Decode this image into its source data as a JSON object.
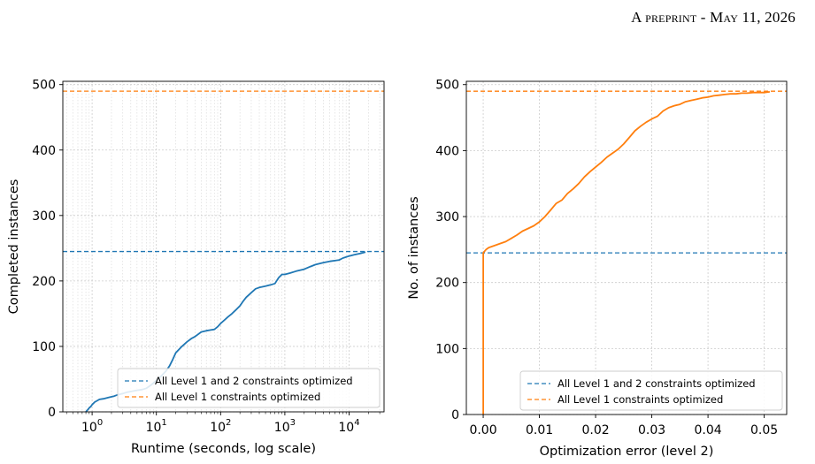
{
  "header": {
    "text": "A preprint - May 11, 2026"
  },
  "colors": {
    "blue": "#1f77b4",
    "orange": "#ff7f0e"
  },
  "chart_data": [
    {
      "type": "line",
      "xscale": "log",
      "xlabel": "Runtime (seconds, log scale)",
      "ylabel": "Completed instances",
      "xlim": [
        0.35,
        35000
      ],
      "ylim": [
        0,
        505
      ],
      "xticks": [
        {
          "v": 1,
          "label": "10^0"
        },
        {
          "v": 10,
          "label": "10^1"
        },
        {
          "v": 100,
          "label": "10^2"
        },
        {
          "v": 1000,
          "label": "10^3"
        },
        {
          "v": 10000,
          "label": "10^4"
        }
      ],
      "yticks": [
        0,
        100,
        200,
        300,
        400,
        500
      ],
      "grid": true,
      "legend_position": "lower-right",
      "hlines": [
        {
          "y": 245,
          "color": "#1f77b4",
          "style": "dashed",
          "label": "All Level 1 and 2 constraints optimized"
        },
        {
          "y": 490,
          "color": "#ff7f0e",
          "style": "dashed",
          "label": "All Level 1 constraints optimized"
        }
      ],
      "series": [
        {
          "color": "#1f77b4",
          "points": [
            [
              0.8,
              0
            ],
            [
              0.85,
              3
            ],
            [
              0.9,
              6
            ],
            [
              0.95,
              8
            ],
            [
              1.0,
              11
            ],
            [
              1.1,
              15
            ],
            [
              1.2,
              17
            ],
            [
              1.3,
              19
            ],
            [
              1.5,
              20
            ],
            [
              1.8,
              22
            ],
            [
              2.2,
              24
            ],
            [
              2.5,
              26
            ],
            [
              3.0,
              28
            ],
            [
              3.5,
              30
            ],
            [
              4.0,
              31
            ],
            [
              5.0,
              33
            ],
            [
              6.0,
              34
            ],
            [
              7.0,
              36
            ],
            [
              8.0,
              40
            ],
            [
              9.0,
              44
            ],
            [
              10.0,
              48
            ],
            [
              12.0,
              55
            ],
            [
              14.0,
              62
            ],
            [
              16.0,
              70
            ],
            [
              18.0,
              80
            ],
            [
              20.0,
              90
            ],
            [
              25.0,
              100
            ],
            [
              30.0,
              107
            ],
            [
              35.0,
              112
            ],
            [
              40.0,
              115
            ],
            [
              50.0,
              122
            ],
            [
              60.0,
              124
            ],
            [
              70.0,
              125
            ],
            [
              80.0,
              126
            ],
            [
              90.0,
              130
            ],
            [
              100.0,
              135
            ],
            [
              130.0,
              145
            ],
            [
              150.0,
              150
            ],
            [
              170.0,
              155
            ],
            [
              200.0,
              162
            ],
            [
              220.0,
              168
            ],
            [
              250.0,
              175
            ],
            [
              300.0,
              182
            ],
            [
              350.0,
              188
            ],
            [
              400.0,
              190
            ],
            [
              500.0,
              192
            ],
            [
              600.0,
              194
            ],
            [
              700.0,
              196
            ],
            [
              800.0,
              205
            ],
            [
              900.0,
              210
            ],
            [
              1000.0,
              210
            ],
            [
              1200.0,
              212
            ],
            [
              1500.0,
              215
            ],
            [
              2000.0,
              218
            ],
            [
              2500.0,
              222
            ],
            [
              3000.0,
              225
            ],
            [
              4000.0,
              228
            ],
            [
              5000.0,
              230
            ],
            [
              7000.0,
              232
            ],
            [
              8000.0,
              235
            ],
            [
              10000.0,
              238
            ],
            [
              12000.0,
              240
            ],
            [
              15000.0,
              242
            ],
            [
              18000.0,
              244
            ]
          ]
        }
      ]
    },
    {
      "type": "line",
      "xlabel": "Optimization error (level 2)",
      "ylabel": "No. of instances",
      "xlim": [
        -0.003,
        0.054
      ],
      "ylim": [
        0,
        505
      ],
      "xticks": [
        {
          "v": 0,
          "label": "0.00"
        },
        {
          "v": 0.01,
          "label": "0.01"
        },
        {
          "v": 0.02,
          "label": "0.02"
        },
        {
          "v": 0.03,
          "label": "0.03"
        },
        {
          "v": 0.04,
          "label": "0.04"
        },
        {
          "v": 0.05,
          "label": "0.05"
        }
      ],
      "yticks": [
        0,
        100,
        200,
        300,
        400,
        500
      ],
      "grid": true,
      "legend_position": "lower-right",
      "hlines": [
        {
          "y": 245,
          "color": "#1f77b4",
          "style": "dashed",
          "label": "All Level 1 and 2 constraints optimized"
        },
        {
          "y": 490,
          "color": "#ff7f0e",
          "style": "dashed",
          "label": "All Level 1 constraints optimized"
        }
      ],
      "series": [
        {
          "color": "#ff7f0e",
          "points": [
            [
              0,
              0
            ],
            [
              0,
              245
            ],
            [
              0.0005,
              250
            ],
            [
              0.001,
              253
            ],
            [
              0.002,
              256
            ],
            [
              0.003,
              259
            ],
            [
              0.004,
              262
            ],
            [
              0.005,
              267
            ],
            [
              0.006,
              272
            ],
            [
              0.007,
              278
            ],
            [
              0.008,
              282
            ],
            [
              0.009,
              286
            ],
            [
              0.01,
              292
            ],
            [
              0.011,
              300
            ],
            [
              0.012,
              310
            ],
            [
              0.013,
              320
            ],
            [
              0.014,
              325
            ],
            [
              0.015,
              335
            ],
            [
              0.016,
              342
            ],
            [
              0.017,
              350
            ],
            [
              0.018,
              360
            ],
            [
              0.019,
              368
            ],
            [
              0.02,
              375
            ],
            [
              0.021,
              382
            ],
            [
              0.022,
              390
            ],
            [
              0.023,
              396
            ],
            [
              0.024,
              402
            ],
            [
              0.025,
              410
            ],
            [
              0.026,
              420
            ],
            [
              0.027,
              430
            ],
            [
              0.028,
              437
            ],
            [
              0.029,
              443
            ],
            [
              0.03,
              448
            ],
            [
              0.031,
              452
            ],
            [
              0.032,
              460
            ],
            [
              0.033,
              465
            ],
            [
              0.034,
              468
            ],
            [
              0.035,
              470
            ],
            [
              0.036,
              474
            ],
            [
              0.037,
              476
            ],
            [
              0.038,
              478
            ],
            [
              0.039,
              480
            ],
            [
              0.04,
              481
            ],
            [
              0.041,
              483
            ],
            [
              0.042,
              484
            ],
            [
              0.043,
              485
            ],
            [
              0.044,
              486
            ],
            [
              0.045,
              486
            ],
            [
              0.046,
              487
            ],
            [
              0.047,
              487
            ],
            [
              0.048,
              488
            ],
            [
              0.049,
              488
            ],
            [
              0.05,
              488
            ],
            [
              0.051,
              489
            ]
          ]
        }
      ]
    }
  ]
}
